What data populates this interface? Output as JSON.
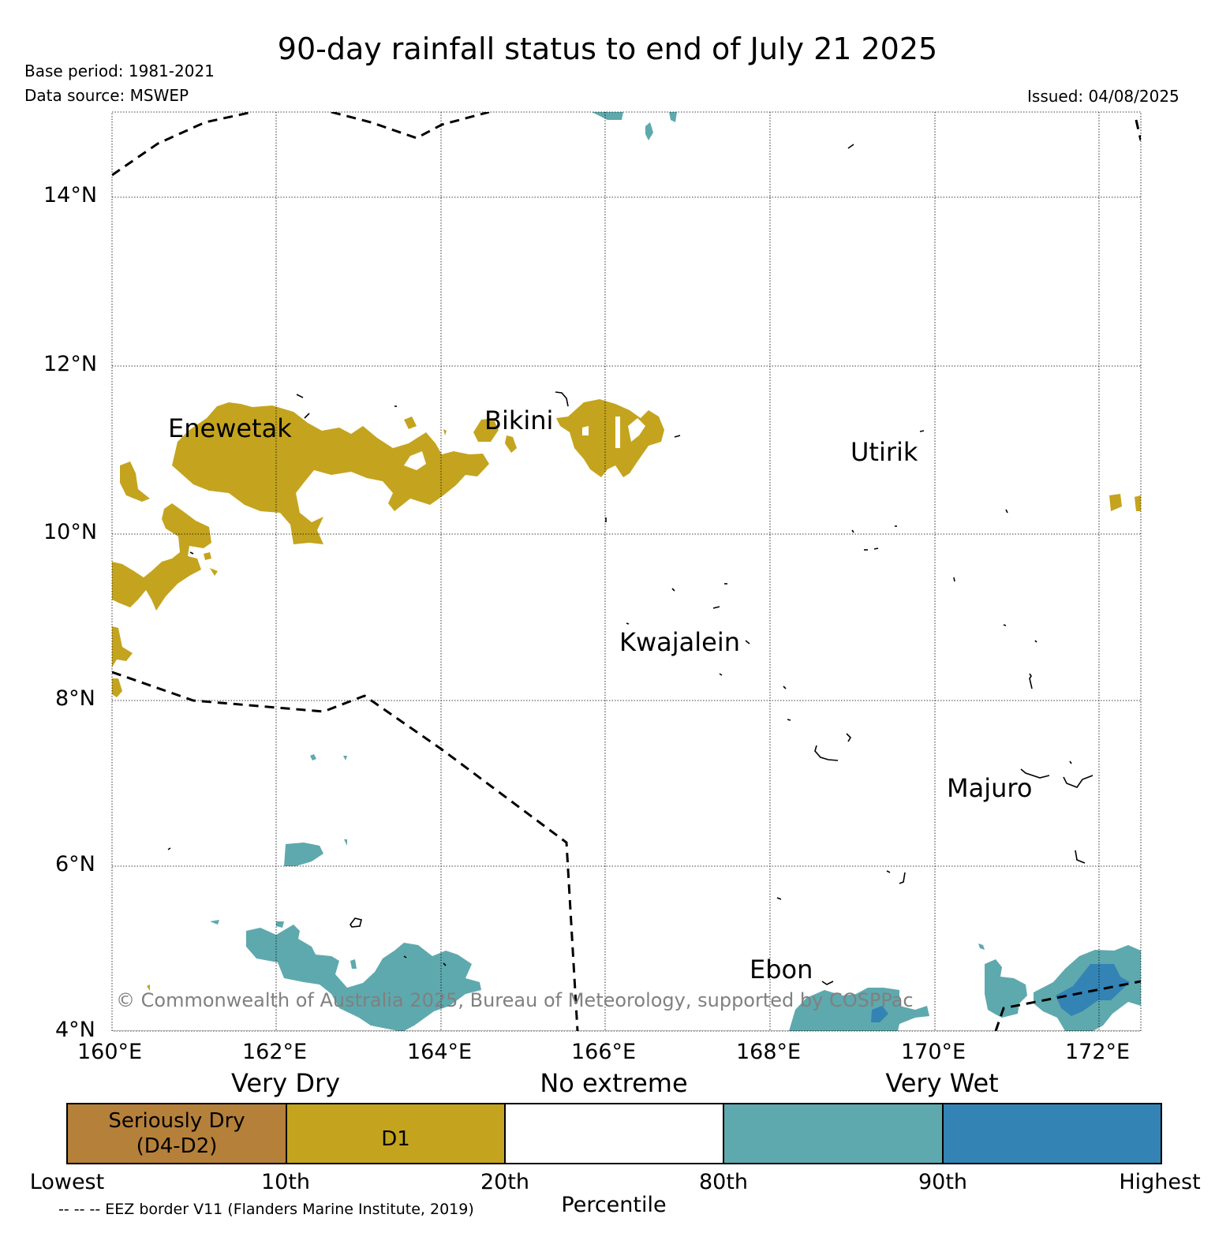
{
  "header": {
    "title": "90-day rainfall status to end of July 21 2025",
    "base_period": "Base period: 1981-2021",
    "data_source": "Data source: MSWEP",
    "issued": "Issued: 04/08/2025"
  },
  "map": {
    "lat_ticks": [
      "14°N",
      "12°N",
      "10°N",
      "8°N",
      "6°N",
      "4°N"
    ],
    "lon_ticks": [
      "160°E",
      "162°E",
      "164°E",
      "166°E",
      "168°E",
      "170°E",
      "172°E"
    ],
    "places": [
      "Enewetak",
      "Bikini",
      "Utirik",
      "Kwajalein",
      "Majuro",
      "Ebon"
    ],
    "copyright": "© Commonwealth of Australia 2025, Bureau of Meteorology, supported by COSPPac",
    "colors": {
      "seriously_dry": "#b5803a",
      "d1": "#c4a41e",
      "no_extreme": "#ffffff",
      "above_80": "#5ea9ae",
      "above_90": "#3383b5"
    }
  },
  "legend": {
    "categories": [
      "Very Dry",
      "No extreme",
      "Very Wet"
    ],
    "boxes": [
      "Seriously Dry\n(D4-D2)",
      "D1",
      "",
      "",
      ""
    ],
    "percentiles": [
      "Lowest",
      "10th",
      "20th",
      "80th",
      "90th",
      "Highest"
    ],
    "axis_label": "Percentile",
    "eez_note": "-- -- -- EEZ border V11 (Flanders Marine Institute, 2019)"
  }
}
